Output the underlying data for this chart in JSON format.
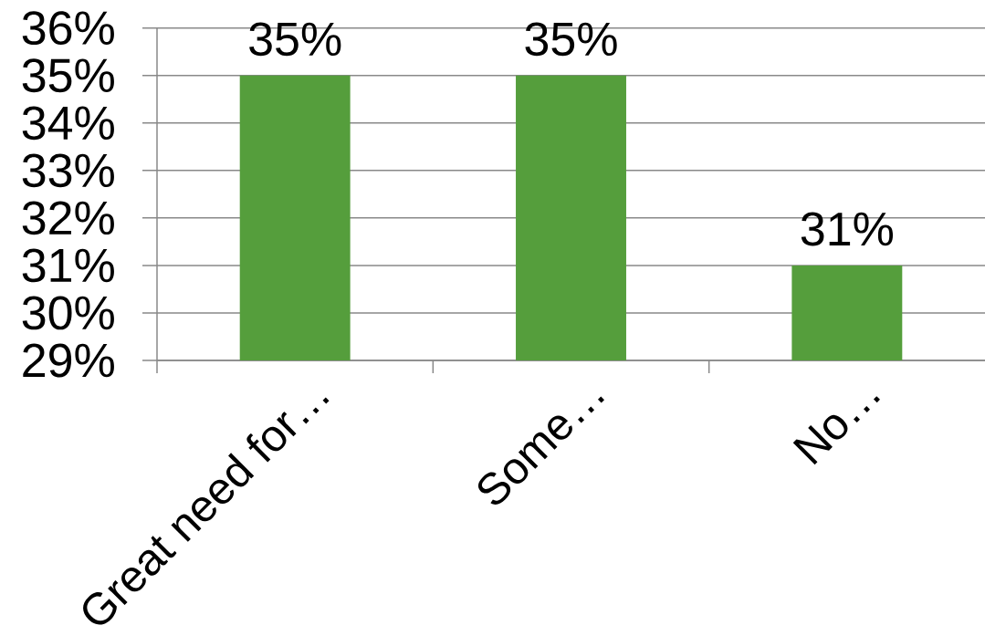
{
  "chart_data": {
    "type": "bar",
    "categories": [
      "Great need for…",
      "Some…",
      "No…"
    ],
    "values": [
      35,
      35,
      31
    ],
    "color": "#559e3c",
    "value_labels": [
      "35%",
      "35%",
      "31%"
    ],
    "ylim": [
      29,
      36
    ],
    "yticks": [
      {
        "value": 29,
        "label": "29%"
      },
      {
        "value": 30,
        "label": "30%"
      },
      {
        "value": 31,
        "label": "31%"
      },
      {
        "value": 32,
        "label": "32%"
      },
      {
        "value": 33,
        "label": "33%"
      },
      {
        "value": 34,
        "label": "34%"
      },
      {
        "value": 35,
        "label": "35%"
      },
      {
        "value": 36,
        "label": "36%"
      }
    ],
    "grid": "y"
  }
}
